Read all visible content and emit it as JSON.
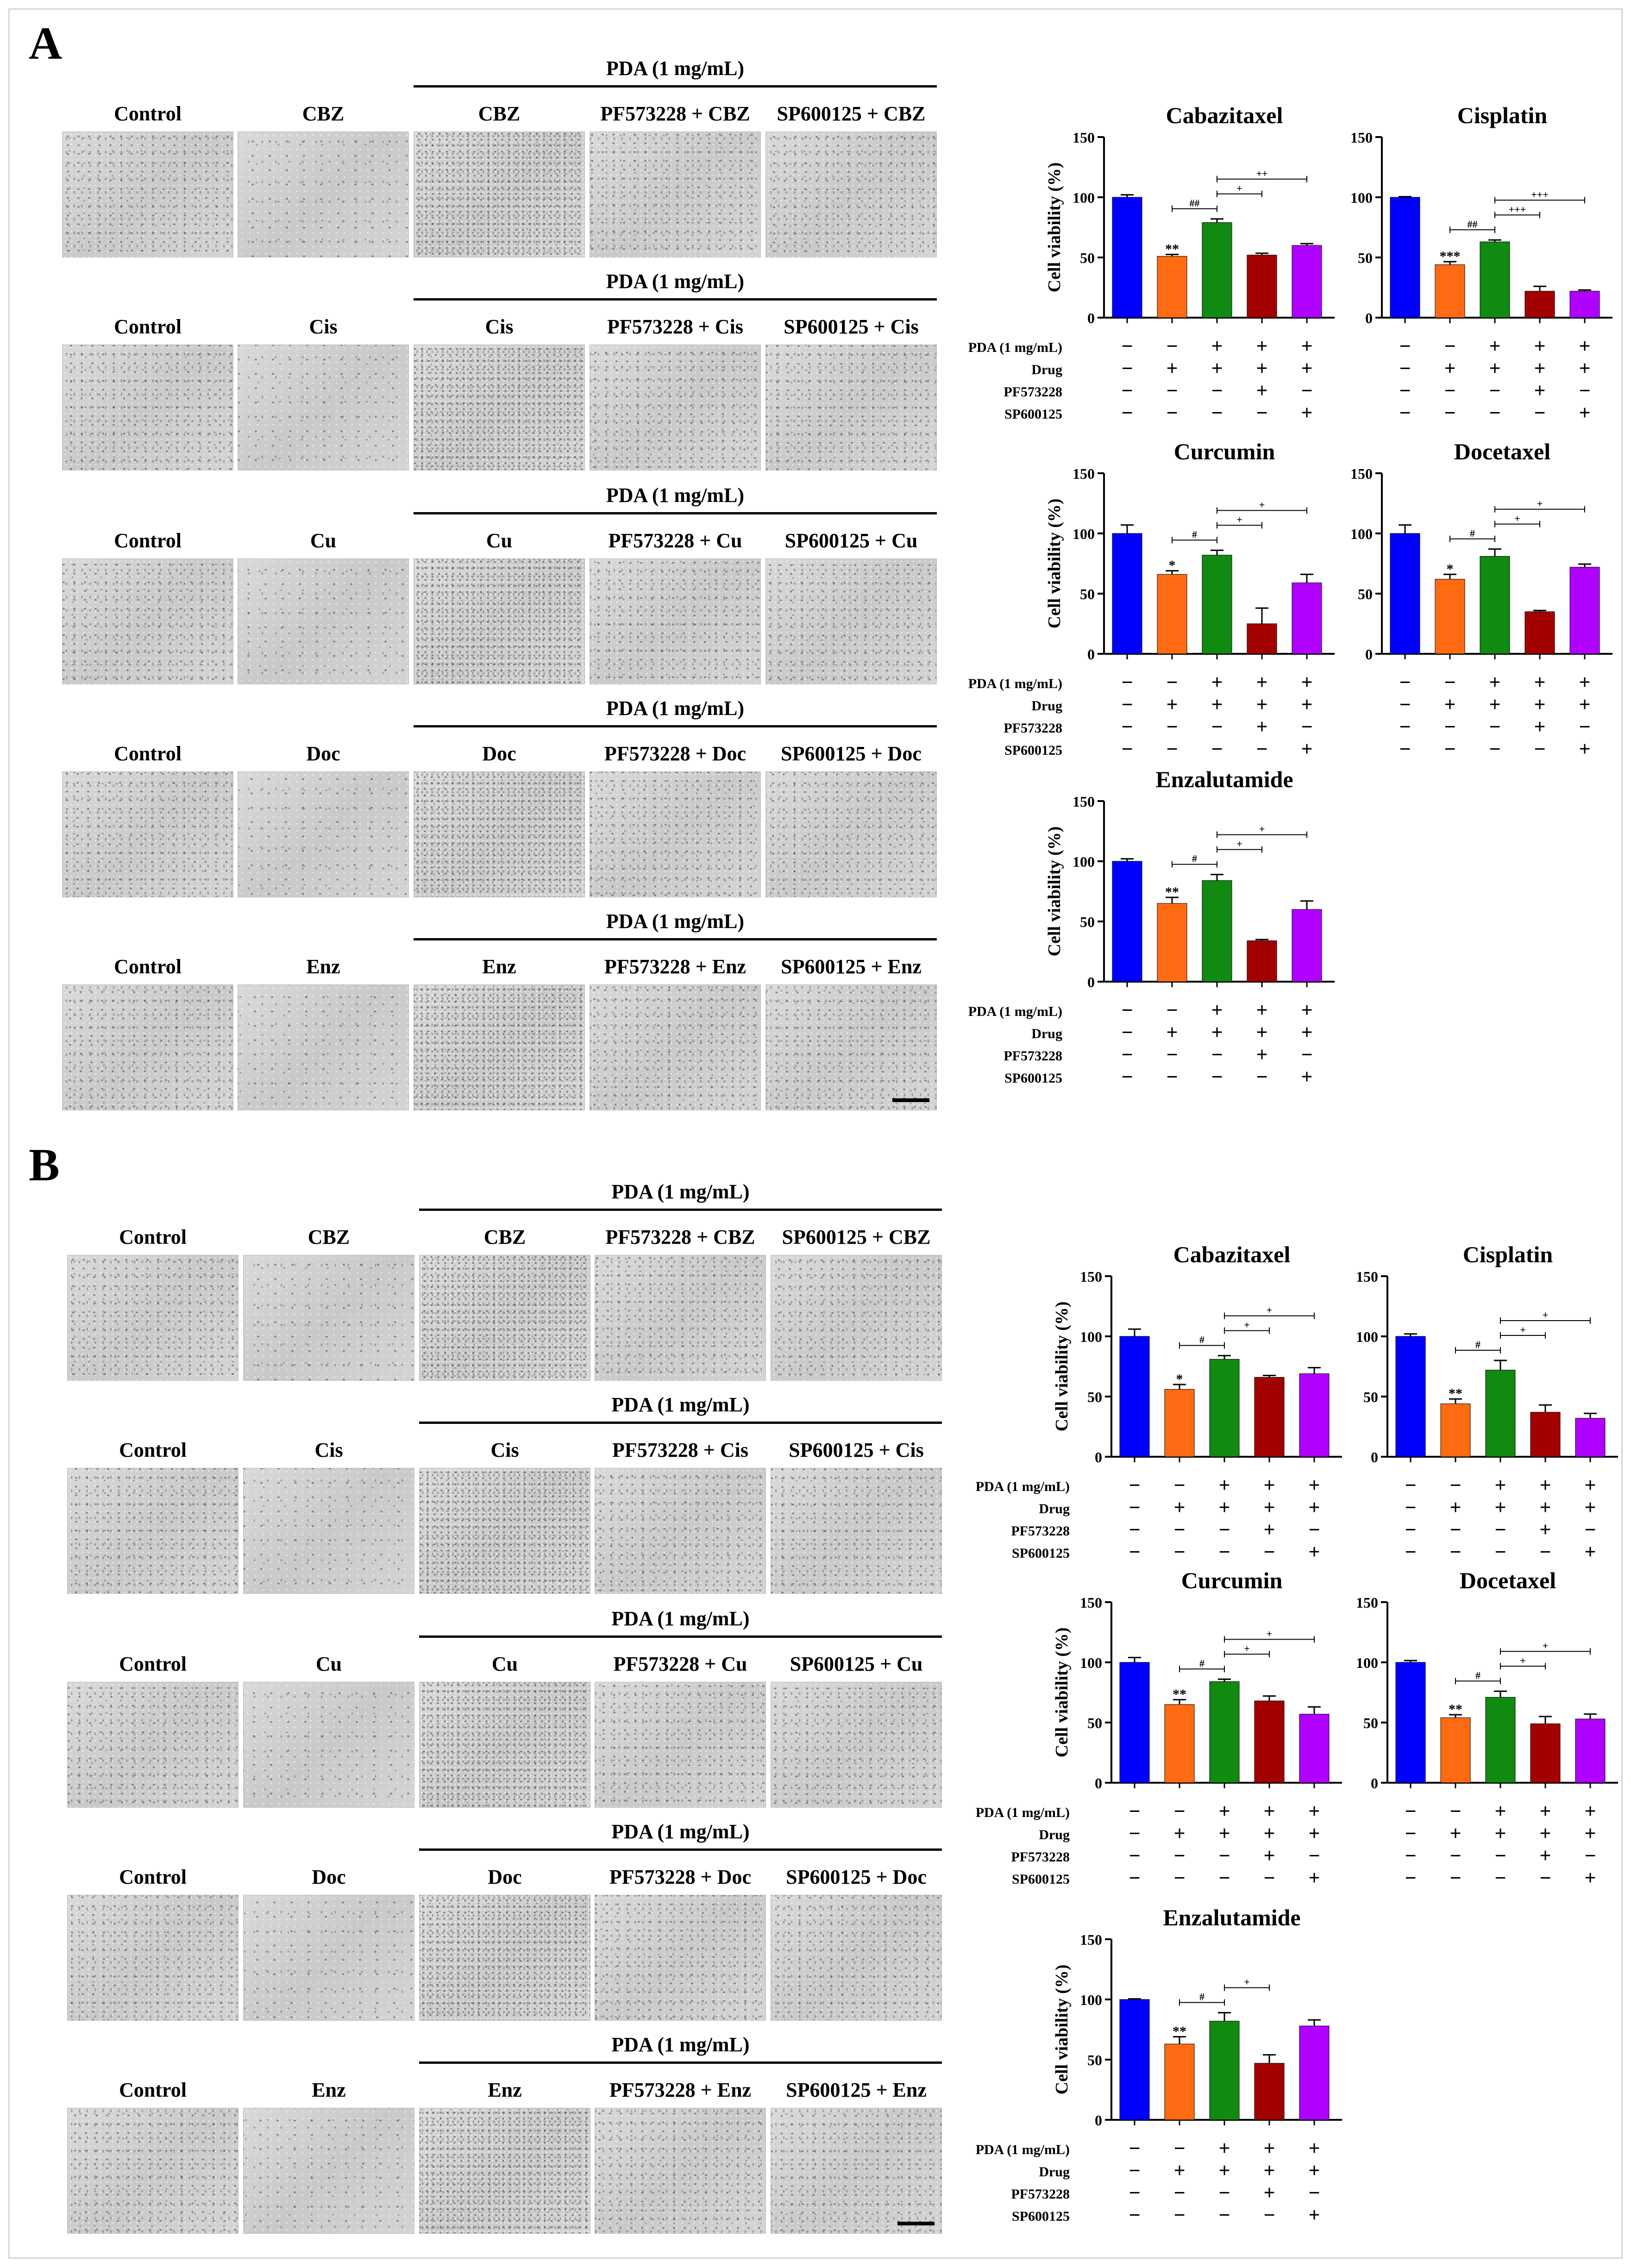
{
  "figure": {
    "panels": [
      {
        "letter": "A",
        "rows": [
          {
            "pda": "PDA (1 mg/mL)",
            "labels": [
              "Control",
              "CBZ",
              "CBZ",
              "PF573228 + CBZ",
              "SP600125 + CBZ"
            ]
          },
          {
            "pda": "PDA (1 mg/mL)",
            "labels": [
              "Control",
              "Cis",
              "Cis",
              "PF573228 + Cis",
              "SP600125 + Cis"
            ]
          },
          {
            "pda": "PDA (1 mg/mL)",
            "labels": [
              "Control",
              "Cu",
              "Cu",
              "PF573228 + Cu",
              "SP600125 + Cu"
            ]
          },
          {
            "pda": "PDA (1 mg/mL)",
            "labels": [
              "Control",
              "Doc",
              "Doc",
              "PF573228 + Doc",
              "SP600125 + Doc"
            ]
          },
          {
            "pda": "PDA (1 mg/mL)",
            "labels": [
              "Control",
              "Enz",
              "Enz",
              "PF573228 + Enz",
              "SP600125 + Enz"
            ]
          }
        ]
      },
      {
        "letter": "B",
        "rows": [
          {
            "pda": "PDA (1 mg/mL)",
            "labels": [
              "Control",
              "CBZ",
              "CBZ",
              "PF573228 + CBZ",
              "SP600125 + CBZ"
            ]
          },
          {
            "pda": "PDA (1 mg/mL)",
            "labels": [
              "Control",
              "Cis",
              "Cis",
              "PF573228 + Cis",
              "SP600125 + Cis"
            ]
          },
          {
            "pda": "PDA (1 mg/mL)",
            "labels": [
              "Control",
              "Cu",
              "Cu",
              "PF573228 + Cu",
              "SP600125 + Cu"
            ]
          },
          {
            "pda": "PDA (1 mg/mL)",
            "labels": [
              "Control",
              "Doc",
              "Doc",
              "PF573228 + Doc",
              "SP600125 + Doc"
            ]
          },
          {
            "pda": "PDA (1 mg/mL)",
            "labels": [
              "Control",
              "Enz",
              "Enz",
              "PF573228 + Enz",
              "SP600125 + Enz"
            ]
          }
        ]
      }
    ]
  },
  "condition_table": {
    "rows": [
      {
        "label": "PDA (1 mg/mL)",
        "signs": [
          "−",
          "−",
          "+",
          "+",
          "+"
        ]
      },
      {
        "label": "Drug",
        "signs": [
          "−",
          "+",
          "+",
          "+",
          "+"
        ]
      },
      {
        "label": "PF573228",
        "signs": [
          "−",
          "−",
          "−",
          "+",
          "−"
        ]
      },
      {
        "label": "SP600125",
        "signs": [
          "−",
          "−",
          "−",
          "−",
          "+"
        ]
      }
    ]
  },
  "colors": [
    "#0000ff",
    "#ff6a13",
    "#118a11",
    "#a30000",
    "#b000ff"
  ],
  "chart_data": [
    {
      "id": "A-cbz",
      "panel": "A",
      "type": "bar",
      "title": "Cabazitaxel",
      "ylabel": "Cell viability (%)",
      "ylim": [
        0,
        150
      ],
      "yticks": [
        "0",
        "50",
        "100",
        "150"
      ],
      "categories": [
        "Control",
        "Drug",
        "PDA + Drug",
        "PDA + PF573228 + Drug",
        "PDA + SP600125 + Drug"
      ],
      "values": [
        100,
        51,
        79,
        52,
        60
      ],
      "errors": [
        2,
        1.5,
        3,
        1.5,
        1.5
      ],
      "sig_labels": [
        "",
        "**",
        "",
        "",
        ""
      ],
      "brackets": [
        {
          "from": 1,
          "to": 2,
          "label": "##"
        },
        {
          "from": 2,
          "to": 3,
          "label": "+"
        },
        {
          "from": 2,
          "to": 4,
          "label": "++"
        }
      ]
    },
    {
      "id": "A-cis",
      "panel": "A",
      "type": "bar",
      "title": "Cisplatin",
      "ylabel": "",
      "ylim": [
        0,
        150
      ],
      "yticks": [
        "0",
        "50",
        "100",
        "150"
      ],
      "categories": [
        "Control",
        "Drug",
        "PDA + Drug",
        "PDA + PF573228 + Drug",
        "PDA + SP600125 + Drug"
      ],
      "values": [
        100,
        44,
        63,
        22,
        22
      ],
      "errors": [
        0.5,
        2.5,
        1.5,
        4,
        1
      ],
      "sig_labels": [
        "",
        "***",
        "",
        "",
        ""
      ],
      "brackets": [
        {
          "from": 1,
          "to": 2,
          "label": "##"
        },
        {
          "from": 2,
          "to": 3,
          "label": "+++"
        },
        {
          "from": 2,
          "to": 4,
          "label": "+++"
        }
      ]
    },
    {
      "id": "A-cu",
      "panel": "A",
      "type": "bar",
      "title": "Curcumin",
      "ylabel": "Cell viability (%)",
      "ylim": [
        0,
        150
      ],
      "yticks": [
        "0",
        "50",
        "100",
        "150"
      ],
      "categories": [
        "Control",
        "Drug",
        "PDA + Drug",
        "PDA + PF573228 + Drug",
        "PDA + SP600125 + Drug"
      ],
      "values": [
        100,
        66,
        82,
        25,
        59
      ],
      "errors": [
        7,
        3,
        4,
        13,
        7
      ],
      "sig_labels": [
        "",
        "*",
        "",
        "",
        ""
      ],
      "brackets": [
        {
          "from": 1,
          "to": 2,
          "label": "#"
        },
        {
          "from": 2,
          "to": 3,
          "label": "+"
        },
        {
          "from": 2,
          "to": 4,
          "label": "+"
        }
      ]
    },
    {
      "id": "A-doc",
      "panel": "A",
      "type": "bar",
      "title": "Docetaxel",
      "ylabel": "",
      "ylim": [
        0,
        150
      ],
      "yticks": [
        "0",
        "50",
        "100",
        "150"
      ],
      "categories": [
        "Control",
        "Drug",
        "PDA + Drug",
        "PDA + PF573228 + Drug",
        "PDA + SP600125 + Drug"
      ],
      "values": [
        100,
        62,
        81,
        35,
        72
      ],
      "errors": [
        7,
        4,
        6,
        1,
        2.5
      ],
      "sig_labels": [
        "",
        "*",
        "",
        "",
        ""
      ],
      "brackets": [
        {
          "from": 1,
          "to": 2,
          "label": "#"
        },
        {
          "from": 2,
          "to": 3,
          "label": "+"
        },
        {
          "from": 2,
          "to": 4,
          "label": "+"
        }
      ]
    },
    {
      "id": "A-enz",
      "panel": "A",
      "type": "bar",
      "title": "Enzalutamide",
      "ylabel": "Cell viability (%)",
      "ylim": [
        0,
        150
      ],
      "yticks": [
        "0",
        "50",
        "100",
        "150"
      ],
      "categories": [
        "Control",
        "Drug",
        "PDA + Drug",
        "PDA + PF573228 + Drug",
        "PDA + SP600125 + Drug"
      ],
      "values": [
        100,
        65,
        84,
        34,
        60
      ],
      "errors": [
        2,
        5,
        5,
        1,
        7
      ],
      "sig_labels": [
        "",
        "**",
        "",
        "",
        ""
      ],
      "brackets": [
        {
          "from": 1,
          "to": 2,
          "label": "#"
        },
        {
          "from": 2,
          "to": 3,
          "label": "+"
        },
        {
          "from": 2,
          "to": 4,
          "label": "+"
        }
      ]
    },
    {
      "id": "B-cbz",
      "panel": "B",
      "type": "bar",
      "title": "Cabazitaxel",
      "ylabel": "Cell viability (%)",
      "ylim": [
        0,
        150
      ],
      "yticks": [
        "0",
        "50",
        "100",
        "150"
      ],
      "categories": [
        "Control",
        "Drug",
        "PDA + Drug",
        "PDA + PF573228 + Drug",
        "PDA + SP600125 + Drug"
      ],
      "values": [
        100,
        56,
        81,
        66,
        69
      ],
      "errors": [
        6,
        4,
        3,
        1.5,
        5
      ],
      "sig_labels": [
        "",
        "*",
        "",
        "",
        ""
      ],
      "brackets": [
        {
          "from": 1,
          "to": 2,
          "label": "#"
        },
        {
          "from": 2,
          "to": 3,
          "label": "+"
        },
        {
          "from": 2,
          "to": 4,
          "label": "+"
        }
      ]
    },
    {
      "id": "B-cis",
      "panel": "B",
      "type": "bar",
      "title": "Cisplatin",
      "ylabel": "",
      "ylim": [
        0,
        150
      ],
      "yticks": [
        "0",
        "50",
        "100",
        "150"
      ],
      "categories": [
        "Control",
        "Drug",
        "PDA + Drug",
        "PDA + PF573228 + Drug",
        "PDA + SP600125 + Drug"
      ],
      "values": [
        100,
        44,
        72,
        37,
        32
      ],
      "errors": [
        2,
        4,
        8,
        6,
        4
      ],
      "sig_labels": [
        "",
        "**",
        "",
        "",
        ""
      ],
      "brackets": [
        {
          "from": 1,
          "to": 2,
          "label": "#"
        },
        {
          "from": 2,
          "to": 3,
          "label": "+"
        },
        {
          "from": 2,
          "to": 4,
          "label": "+"
        }
      ]
    },
    {
      "id": "B-cu",
      "panel": "B",
      "type": "bar",
      "title": "Curcumin",
      "ylabel": "Cell viability (%)",
      "ylim": [
        0,
        150
      ],
      "yticks": [
        "0",
        "50",
        "100",
        "150"
      ],
      "categories": [
        "Control",
        "Drug",
        "PDA + Drug",
        "PDA + PF573228 + Drug",
        "PDA + SP600125 + Drug"
      ],
      "values": [
        100,
        65,
        84,
        68,
        57
      ],
      "errors": [
        4,
        4,
        2,
        4,
        6
      ],
      "sig_labels": [
        "",
        "**",
        "",
        "",
        ""
      ],
      "brackets": [
        {
          "from": 1,
          "to": 2,
          "label": "#"
        },
        {
          "from": 2,
          "to": 3,
          "label": "+"
        },
        {
          "from": 2,
          "to": 4,
          "label": "+"
        }
      ]
    },
    {
      "id": "B-doc",
      "panel": "B",
      "type": "bar",
      "title": "Docetaxel",
      "ylabel": "",
      "ylim": [
        0,
        150
      ],
      "yticks": [
        "0",
        "50",
        "100",
        "150"
      ],
      "categories": [
        "Control",
        "Drug",
        "PDA + Drug",
        "PDA + PF573228 + Drug",
        "PDA + SP600125 + Drug"
      ],
      "values": [
        100,
        54,
        71,
        49,
        53
      ],
      "errors": [
        1.5,
        2.5,
        5,
        6,
        4
      ],
      "sig_labels": [
        "",
        "**",
        "",
        "",
        ""
      ],
      "brackets": [
        {
          "from": 1,
          "to": 2,
          "label": "#"
        },
        {
          "from": 2,
          "to": 3,
          "label": "+"
        },
        {
          "from": 2,
          "to": 4,
          "label": "+"
        }
      ]
    },
    {
      "id": "B-enz",
      "panel": "B",
      "type": "bar",
      "title": "Enzalutamide",
      "ylabel": "Cell viability (%)",
      "ylim": [
        0,
        150
      ],
      "yticks": [
        "0",
        "50",
        "100",
        "150"
      ],
      "categories": [
        "Control",
        "Drug",
        "PDA + Drug",
        "PDA + PF573228 + Drug",
        "PDA + SP600125 + Drug"
      ],
      "values": [
        100,
        63,
        82,
        47,
        78
      ],
      "errors": [
        0.5,
        6,
        7,
        7,
        5
      ],
      "sig_labels": [
        "",
        "**",
        "",
        "",
        ""
      ],
      "brackets": [
        {
          "from": 1,
          "to": 2,
          "label": "#"
        },
        {
          "from": 2,
          "to": 3,
          "label": "+"
        }
      ]
    }
  ]
}
